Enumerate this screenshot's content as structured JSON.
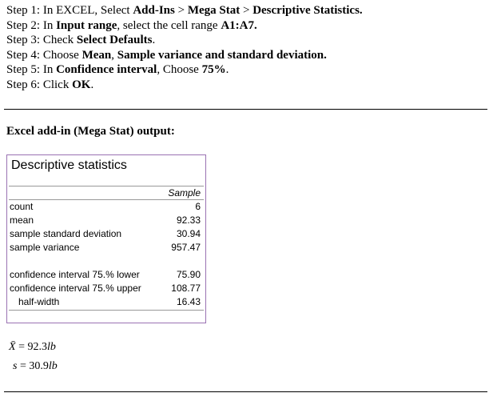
{
  "steps": [
    [
      {
        "text": "Step 1: In EXCEL, Select "
      },
      {
        "text": "Add-Ins",
        "bold": true
      },
      {
        "text": " > "
      },
      {
        "text": "Mega Stat",
        "bold": true
      },
      {
        "text": " > "
      },
      {
        "text": "Descriptive Statistics.",
        "bold": true
      }
    ],
    [
      {
        "text": "Step 2: In "
      },
      {
        "text": "Input range",
        "bold": true
      },
      {
        "text": ", select the cell range "
      },
      {
        "text": "A1:A7.",
        "bold": true
      }
    ],
    [
      {
        "text": "Step 3: Check "
      },
      {
        "text": "Select Defaults",
        "bold": true
      },
      {
        "text": "."
      }
    ],
    [
      {
        "text": "Step 4: Choose "
      },
      {
        "text": "Mean",
        "bold": true
      },
      {
        "text": ", "
      },
      {
        "text": "Sample variance and standard deviation.",
        "bold": true
      }
    ],
    [
      {
        "text": "Step 5: In "
      },
      {
        "text": "Confidence interval",
        "bold": true
      },
      {
        "text": ", Choose "
      },
      {
        "text": "75%",
        "bold": true
      },
      {
        "text": "."
      }
    ],
    [
      {
        "text": "Step 6: Click "
      },
      {
        "text": "OK",
        "bold": true
      },
      {
        "text": "."
      }
    ]
  ],
  "output_heading": "Excel add-in (Mega Stat) output:",
  "table": {
    "title": "Descriptive statistics",
    "column": "Sample",
    "groups": [
      [
        {
          "label": "count",
          "value": "6"
        },
        {
          "label": "mean",
          "value": "92.33"
        },
        {
          "label": "sample standard deviation",
          "value": "30.94"
        },
        {
          "label": "sample variance",
          "value": "957.47"
        }
      ],
      [
        {
          "label": "confidence interval 75.% lower",
          "value": "75.90"
        },
        {
          "label": "confidence interval 75.% upper",
          "value": "108.77"
        },
        {
          "label": "half-width",
          "value": "16.43",
          "indent": true
        }
      ]
    ]
  },
  "formulas": [
    {
      "symbol": "X̄",
      "value": " = 92.3",
      "unit": "lb"
    },
    {
      "symbol": "s",
      "value": " = 30.9",
      "unit": "lb"
    }
  ]
}
